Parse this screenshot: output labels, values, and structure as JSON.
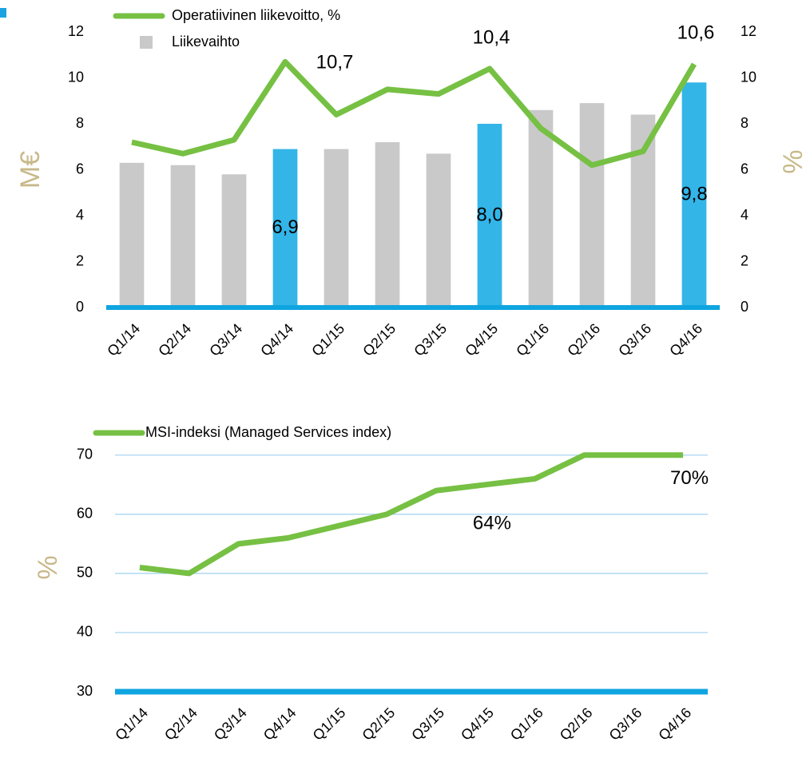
{
  "chart_data": [
    {
      "type": "bar",
      "categories": [
        "Q1/14",
        "Q2/14",
        "Q3/14",
        "Q4/14",
        "Q1/15",
        "Q2/15",
        "Q3/15",
        "Q4/15",
        "Q1/16",
        "Q2/16",
        "Q3/16",
        "Q4/16"
      ],
      "y_label": "M€",
      "y2_label": "%",
      "ylim": [
        0,
        12
      ],
      "yticks": [
        0,
        2,
        4,
        6,
        8,
        10,
        12
      ],
      "y2lim": [
        0,
        12
      ],
      "y2ticks": [
        0,
        2,
        4,
        6,
        8,
        10,
        12
      ],
      "series": [
        {
          "name": "Operatiivinen liikevoitto, %",
          "type": "line",
          "axis": "y2",
          "color": "#76c043",
          "values": [
            7.2,
            6.7,
            7.3,
            10.7,
            8.4,
            9.5,
            9.3,
            10.4,
            7.8,
            6.2,
            6.8,
            10.6
          ],
          "value_labels": [
            null,
            null,
            null,
            "10,7",
            null,
            null,
            null,
            "10,4",
            null,
            null,
            null,
            "10,6"
          ]
        },
        {
          "name": "Liikevaihto",
          "type": "bar",
          "color": "#c9c9c9",
          "colors": [
            "#c9c9c9",
            "#c9c9c9",
            "#c9c9c9",
            "#33b5e8",
            "#c9c9c9",
            "#c9c9c9",
            "#c9c9c9",
            "#33b5e8",
            "#c9c9c9",
            "#c9c9c9",
            "#c9c9c9",
            "#33b5e8"
          ],
          "values": [
            6.3,
            6.2,
            5.8,
            6.9,
            6.9,
            7.2,
            6.7,
            8.0,
            8.6,
            8.9,
            8.4,
            9.8
          ],
          "value_labels": [
            null,
            null,
            null,
            "6,9",
            null,
            null,
            null,
            "8,0",
            null,
            null,
            null,
            "9,8"
          ]
        }
      ]
    },
    {
      "type": "line",
      "categories": [
        "Q1/14",
        "Q2/14",
        "Q3/14",
        "Q4/14",
        "Q1/15",
        "Q2/15",
        "Q3/15",
        "Q4/15",
        "Q1/16",
        "Q2/16",
        "Q3/16",
        "Q4/16"
      ],
      "y_label": "%",
      "ylim": [
        30,
        72
      ],
      "yticks": [
        30,
        40,
        50,
        60,
        70
      ],
      "grid": true,
      "series": [
        {
          "name": "MSI-indeksi (Managed Services index)",
          "color": "#76c043",
          "values": [
            51,
            50,
            55,
            56,
            58,
            60,
            64,
            65,
            66,
            70,
            70,
            70
          ],
          "value_labels": [
            null,
            null,
            null,
            null,
            null,
            null,
            "64%",
            null,
            null,
            null,
            null,
            "70%"
          ]
        }
      ]
    }
  ]
}
